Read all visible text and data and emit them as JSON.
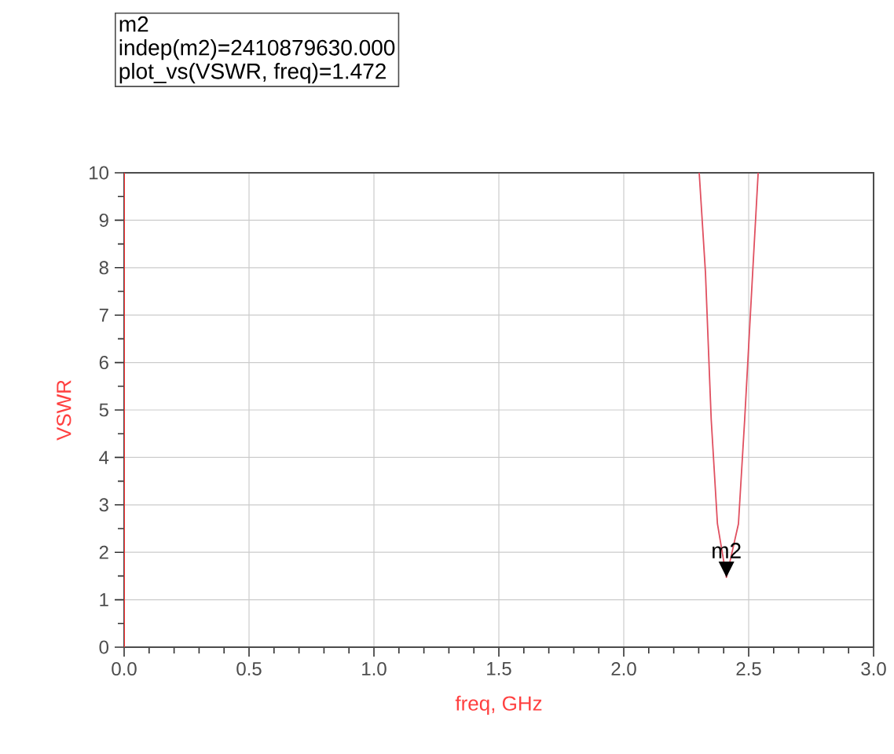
{
  "chart_data": {
    "type": "line",
    "xlabel": "freq, GHz",
    "ylabel": "VSWR",
    "series": [
      {
        "color": "#e05060",
        "x": [
          2.302,
          2.327,
          2.35,
          2.375,
          2.4109,
          2.459,
          2.484,
          2.516,
          2.538
        ],
        "values": [
          10,
          7.9,
          4.8,
          2.6,
          1.472,
          2.6,
          4.8,
          7.9,
          10
        ]
      }
    ],
    "xlim": [
      0,
      3
    ],
    "ylim": [
      0,
      10
    ],
    "xticks": [
      {
        "value": 0,
        "label": "0.0"
      },
      {
        "value": 0.5,
        "label": "0.5"
      },
      {
        "value": 1,
        "label": "1.0"
      },
      {
        "value": 1.5,
        "label": "1.5"
      },
      {
        "value": 2,
        "label": "2.0"
      },
      {
        "value": 2.5,
        "label": "2.5"
      },
      {
        "value": 3,
        "label": "3.0"
      }
    ],
    "yticks": [
      0,
      1,
      2,
      3,
      4,
      5,
      6,
      7,
      8,
      9,
      10
    ],
    "grid": true,
    "marker": "none",
    "line_style": "solid",
    "annotations": [
      {
        "text": "m2",
        "x": 2.4109,
        "y": 1.472
      },
      "m2",
      "indep(m2)=2410879630.000",
      "plot_vs(VSWR, freq)=1.472"
    ]
  }
}
